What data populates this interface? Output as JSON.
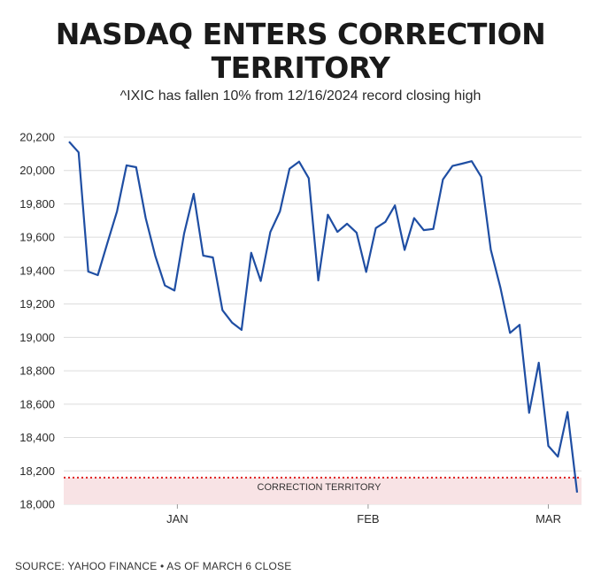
{
  "chart_data": {
    "type": "line",
    "title": "NASDAQ ENTERS CORRECTION TERRITORY",
    "subtitle": "^IXIC has fallen 10% from 12/16/2024 record closing high",
    "source": "SOURCE: YAHOO FINANCE • AS OF MARCH 6 CLOSE",
    "ylim": [
      18000,
      20200
    ],
    "yticks": [
      20200,
      20000,
      19800,
      19600,
      19400,
      19200,
      19000,
      18800,
      18600,
      18400,
      18200,
      18000
    ],
    "ytick_labels": [
      "20,200",
      "20,000",
      "19,800",
      "19,600",
      "19,400",
      "19,200",
      "19,000",
      "18,800",
      "18,600",
      "18,400",
      "18,200",
      "18,000"
    ],
    "xtick_labels": [
      "JAN",
      "FEB",
      "MAR"
    ],
    "grid": true,
    "correction_threshold": 18160,
    "correction_label": "CORRECTION TERRITORY",
    "line_color": "#1f4ea3",
    "threshold_color": "#e02020",
    "zone_color": "#f8e3e5",
    "series": [
      {
        "values": [
          20173,
          20109,
          19394,
          19373,
          19565,
          19755,
          20031,
          20020,
          19715,
          19487,
          19311,
          19281,
          19622,
          19860,
          19490,
          19479,
          19163,
          19089,
          19045,
          19507,
          19338,
          19631,
          19755,
          20010,
          20053,
          19954,
          19341,
          19735,
          19632,
          19681,
          19627,
          19392,
          19655,
          19692,
          19791,
          19524,
          19715,
          19643,
          19650,
          19946,
          20027,
          20041,
          20056,
          19962,
          19525,
          19297,
          19027,
          19075,
          18548,
          18848,
          18350,
          18285,
          18553,
          18070
        ]
      }
    ]
  }
}
